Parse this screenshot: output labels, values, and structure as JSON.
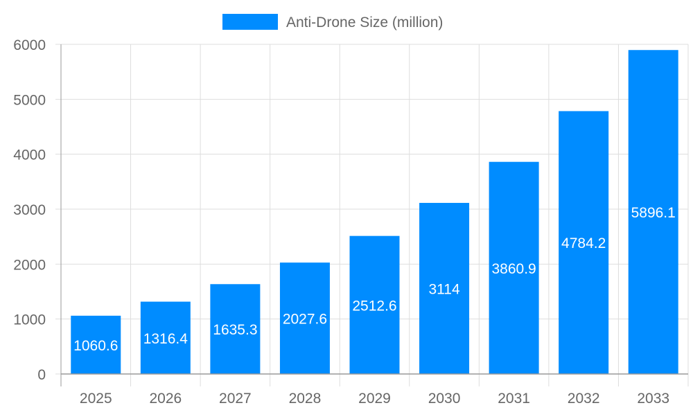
{
  "chart_data": {
    "type": "bar",
    "title": "",
    "xlabel": "",
    "ylabel": "",
    "categories": [
      "2025",
      "2026",
      "2027",
      "2028",
      "2029",
      "2030",
      "2031",
      "2032",
      "2033"
    ],
    "series": [
      {
        "name": "Anti-Drone Size (million)",
        "values": [
          1060.6,
          1316.4,
          1635.3,
          2027.6,
          2512.6,
          3114,
          3860.9,
          4784.2,
          5896.1
        ],
        "color": "#008cff"
      }
    ],
    "ylim": [
      0,
      6000
    ],
    "yticks": [
      0,
      1000,
      2000,
      3000,
      4000,
      5000,
      6000
    ],
    "grid": true,
    "legend": "top-center",
    "data_labels": true
  }
}
